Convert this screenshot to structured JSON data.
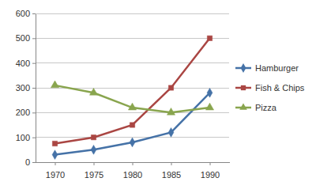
{
  "chart_data": {
    "type": "line",
    "categories": [
      "1970",
      "1975",
      "1980",
      "1985",
      "1990"
    ],
    "series": [
      {
        "name": "Hamburger",
        "color": "#4572a7",
        "marker": "diamond",
        "line_style": "solid",
        "values": [
          30,
          50,
          80,
          120,
          280
        ]
      },
      {
        "name": "Fish & Chips",
        "color": "#aa4643",
        "marker": "square",
        "line_style": "solid",
        "values": [
          75,
          100,
          150,
          300,
          500
        ]
      },
      {
        "name": "Pizza",
        "color": "#89a54e",
        "marker": "triangle",
        "line_style": "solid",
        "values": [
          310,
          280,
          220,
          200,
          220
        ]
      }
    ],
    "ylim": [
      0,
      600
    ],
    "yticks": [
      0,
      100,
      200,
      300,
      400,
      500,
      600
    ],
    "grid": true,
    "legend": "right"
  }
}
